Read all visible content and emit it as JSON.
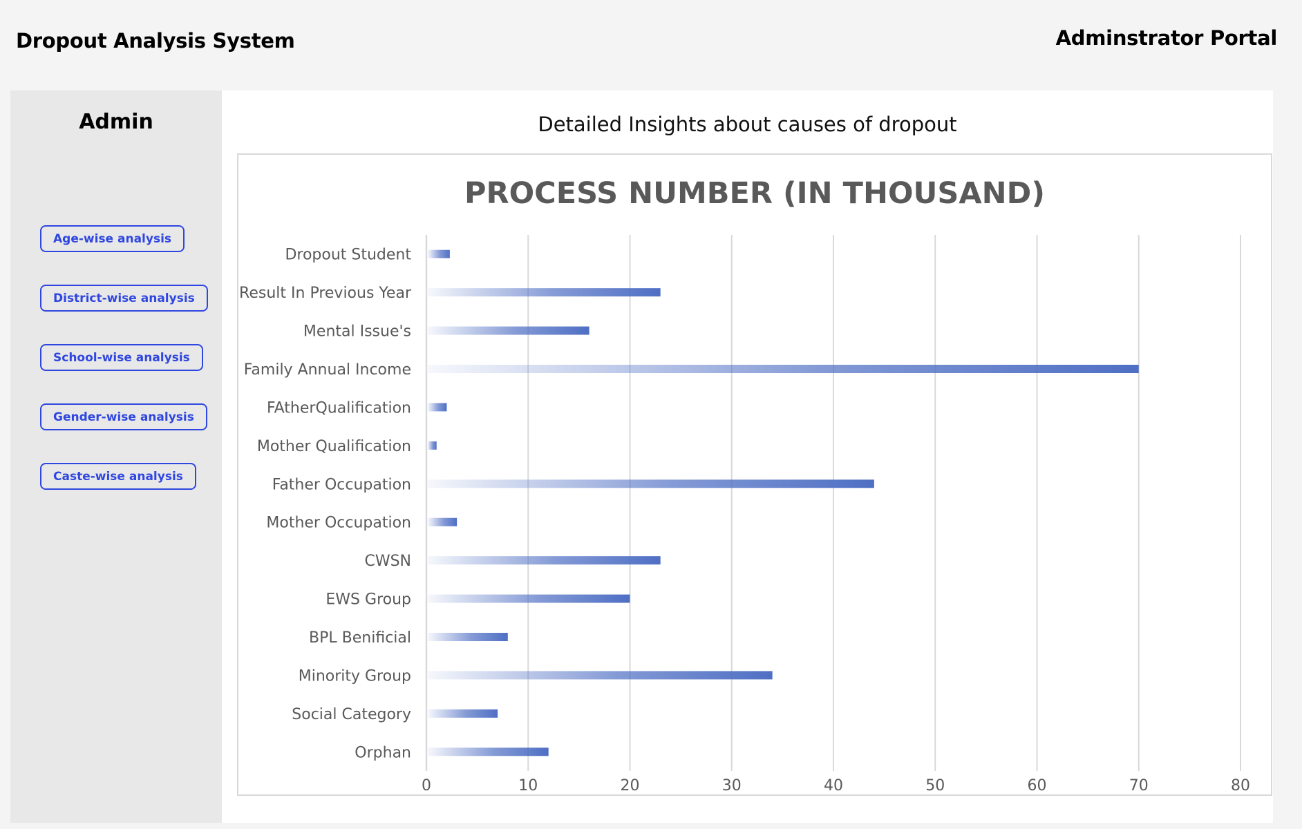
{
  "header": {
    "app_title": "Dropout Analysis System",
    "portal_title": "Adminstrator Portal"
  },
  "sidebar": {
    "heading": "Admin",
    "items": [
      {
        "label": "Age-wise analysis"
      },
      {
        "label": "District-wise analysis"
      },
      {
        "label": "School-wise analysis"
      },
      {
        "label": "Gender-wise analysis"
      },
      {
        "label": "Caste-wise analysis"
      }
    ]
  },
  "main": {
    "heading": "Detailed Insights about causes of dropout"
  },
  "colors": {
    "accent": "#2f47e0",
    "bar": "#4f6fc4",
    "grid": "#d9d9d9"
  },
  "chart_data": {
    "type": "bar",
    "orientation": "horizontal",
    "title": "PROCESS NUMBER (IN THOUSAND)",
    "categories": [
      "Dropout Student",
      "Result In Previous Year",
      "Mental Issue's",
      "Family Annual Income",
      "FAtherQualification",
      "Mother Qualification",
      "Father Occupation",
      "Mother Occupation",
      "CWSN",
      "EWS Group",
      "BPL Benificial",
      "Minority Group",
      "Social Category",
      "Orphan"
    ],
    "values": [
      2.3,
      23,
      16,
      70,
      2,
      1,
      44,
      3,
      23,
      20,
      8,
      34,
      7,
      12
    ],
    "xlim": [
      0,
      80
    ],
    "xticks": [
      "0",
      "10",
      "20",
      "30",
      "40",
      "50",
      "60",
      "70",
      "80"
    ],
    "grid": "vertical",
    "legend": "none"
  }
}
